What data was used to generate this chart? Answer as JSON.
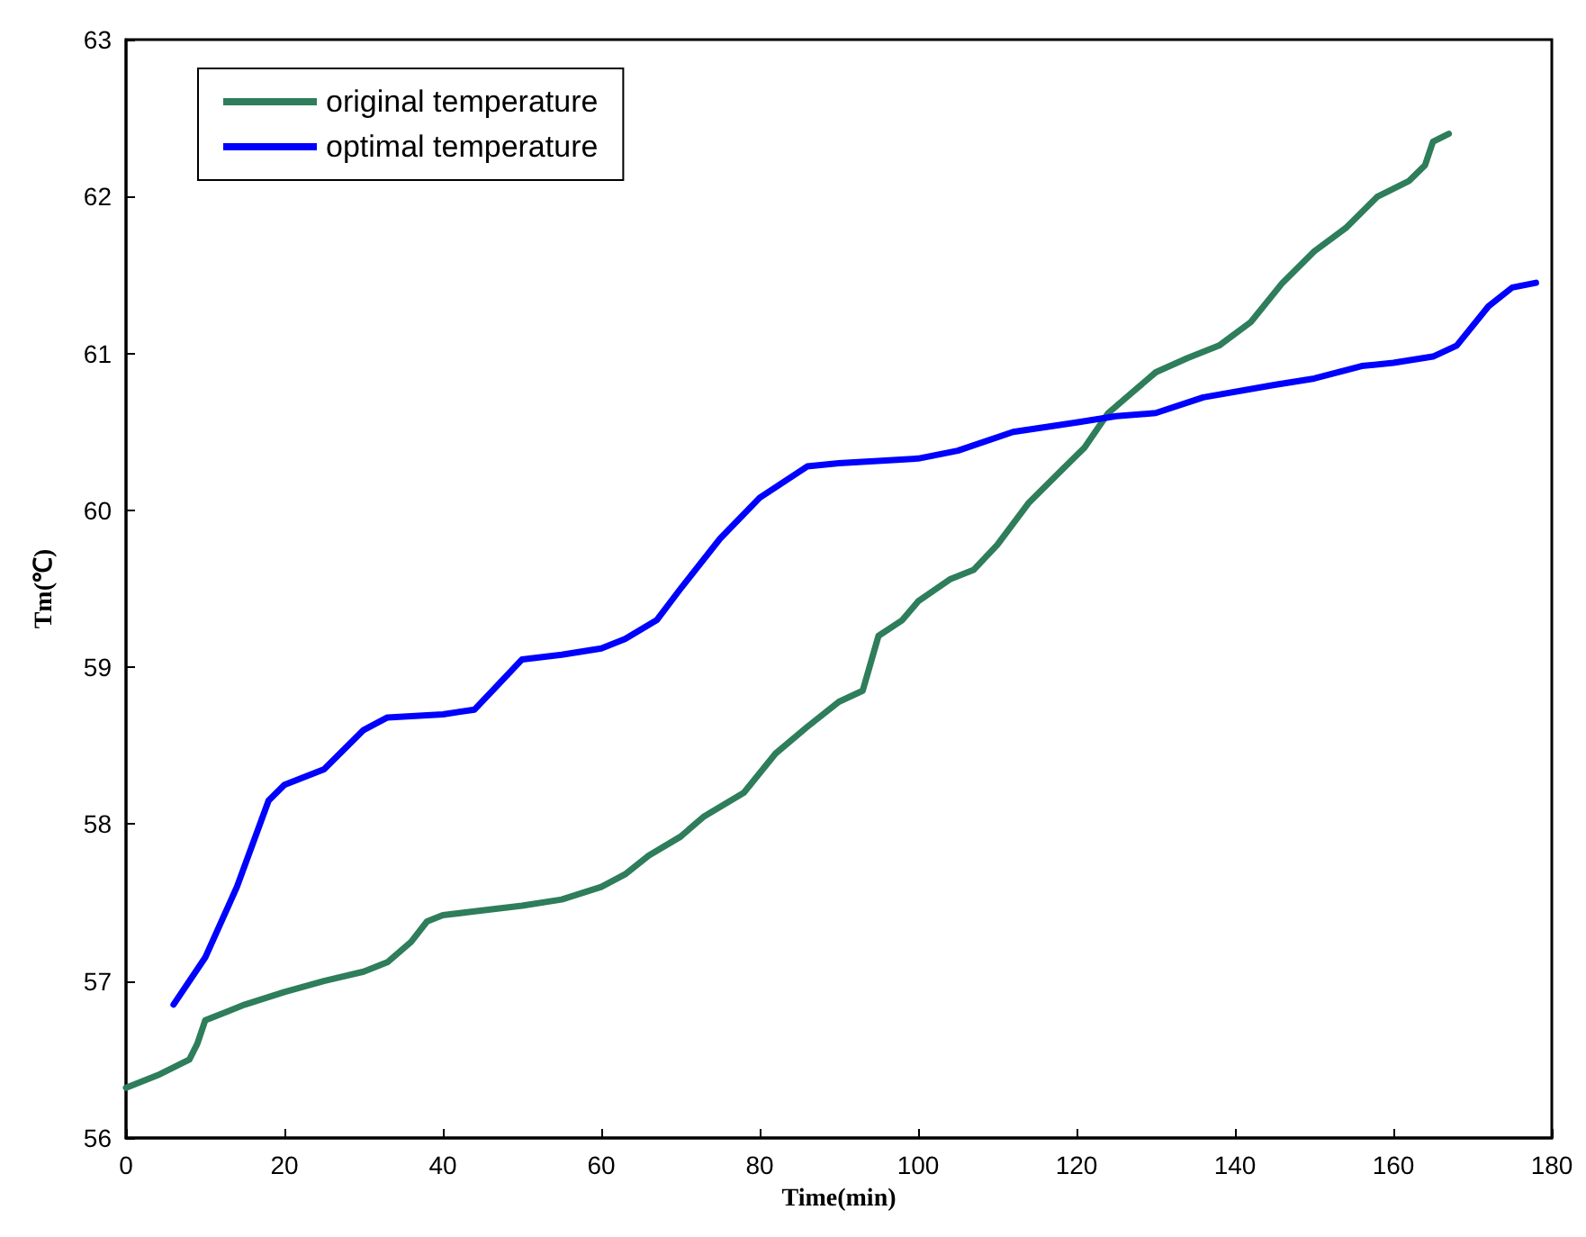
{
  "chart_data": {
    "type": "line",
    "xlabel": "Time(min)",
    "ylabel": "Tm(℃)",
    "xlim": [
      0,
      180
    ],
    "xticks": [
      0,
      20,
      40,
      60,
      80,
      100,
      120,
      140,
      160,
      180
    ],
    "ylim": [
      56,
      63
    ],
    "yticks": [
      56,
      57,
      58,
      59,
      60,
      61,
      62,
      63
    ],
    "grid": false,
    "legend": "top left",
    "marker": "none",
    "line_style": "solid",
    "series": [
      {
        "name": "original temperature",
        "color": "#2e7d5b",
        "x": [
          0,
          4,
          8,
          9,
          10,
          15,
          20,
          25,
          30,
          33,
          36,
          38,
          40,
          50,
          55,
          60,
          63,
          66,
          70,
          73,
          78,
          82,
          86,
          90,
          93,
          95,
          98,
          100,
          104,
          107,
          110,
          114,
          118,
          121,
          124,
          127,
          130,
          134,
          138,
          142,
          146,
          150,
          154,
          158,
          162,
          164,
          165,
          167
        ],
        "values": [
          56.32,
          56.4,
          56.5,
          56.6,
          56.75,
          56.85,
          56.93,
          57.0,
          57.06,
          57.12,
          57.25,
          57.38,
          57.42,
          57.48,
          57.52,
          57.6,
          57.68,
          57.8,
          57.92,
          58.05,
          58.2,
          58.45,
          58.62,
          58.78,
          58.85,
          59.2,
          59.3,
          59.42,
          59.56,
          59.62,
          59.78,
          60.05,
          60.25,
          60.4,
          60.62,
          60.75,
          60.88,
          60.97,
          61.05,
          61.2,
          61.45,
          61.65,
          61.8,
          62.0,
          62.1,
          62.2,
          62.35,
          62.4
        ]
      },
      {
        "name": "optimal temperature",
        "color": "#0000ff",
        "x": [
          6,
          10,
          14,
          18,
          20,
          25,
          30,
          33,
          40,
          44,
          50,
          55,
          60,
          63,
          67,
          70,
          75,
          80,
          86,
          90,
          100,
          105,
          112,
          120,
          125,
          130,
          136,
          145,
          150,
          156,
          160,
          165,
          168,
          172,
          175,
          178
        ],
        "values": [
          56.85,
          57.15,
          57.6,
          58.15,
          58.25,
          58.35,
          58.6,
          58.68,
          58.7,
          58.73,
          59.05,
          59.08,
          59.12,
          59.18,
          59.3,
          59.5,
          59.82,
          60.08,
          60.28,
          60.3,
          60.33,
          60.38,
          60.5,
          60.56,
          60.6,
          60.62,
          60.72,
          60.8,
          60.84,
          60.92,
          60.94,
          60.98,
          61.05,
          61.3,
          61.42,
          61.45
        ]
      }
    ]
  }
}
